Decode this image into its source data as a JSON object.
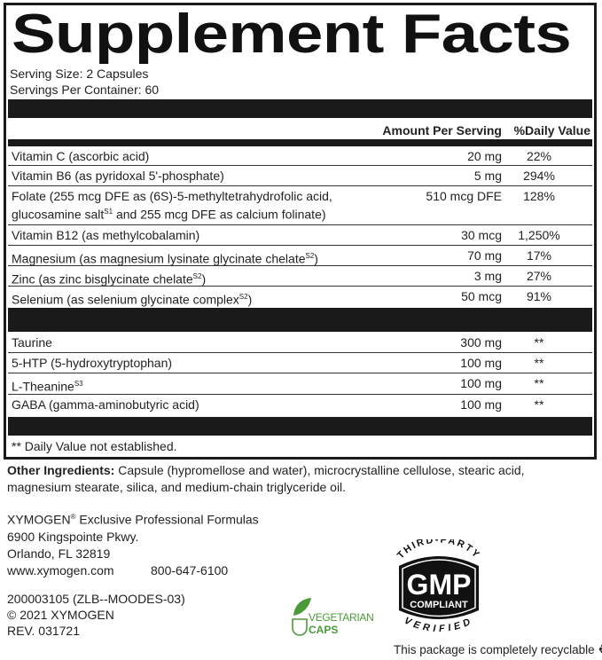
{
  "title": "Supplement Facts",
  "serving_size": "Serving Size: 2 Capsules",
  "servings_per_container": "Servings Per Container: 60",
  "headers": {
    "amount": "Amount Per Serving",
    "dv": "%Daily Value"
  },
  "vitamins": [
    {
      "name": "Vitamin C (ascorbic acid)",
      "amount": "20 mg",
      "dv": "22%"
    },
    {
      "name": "Vitamin B6 (as pyridoxal 5'-phosphate)",
      "amount": "5 mg",
      "dv": "294%"
    },
    {
      "name": "Folate (255 mcg DFE as (6S)-5-methyltetrahydrofolic acid,",
      "name2": "glucosamine salt",
      "sup": "S1",
      "name3": " and 255 mcg DFE as calcium folinate)",
      "amount": "510 mcg DFE",
      "dv": "128%"
    },
    {
      "name": "Vitamin B12 (as methylcobalamin)",
      "amount": "30 mcg",
      "dv": "1,250%"
    },
    {
      "name": "Magnesium (as magnesium lysinate glycinate chelate",
      "sup": "S2",
      "tail": ")",
      "amount": "70 mg",
      "dv": "17%"
    },
    {
      "name": "Zinc (as zinc bisglycinate chelate",
      "sup": "S2",
      "tail": ")",
      "amount": "3 mg",
      "dv": "27%"
    },
    {
      "name": "Selenium (as selenium glycinate complex",
      "sup": "S2",
      "tail": ")",
      "amount": "50 mcg",
      "dv": "91%"
    }
  ],
  "others": [
    {
      "name": "Taurine",
      "amount": "300 mg",
      "dv": "**"
    },
    {
      "name": "5-HTP (5-hydroxytryptophan)",
      "amount": "100 mg",
      "dv": "**"
    },
    {
      "name": "L-Theanine",
      "sup": "S3",
      "amount": "100 mg",
      "dv": "**"
    },
    {
      "name": "GABA (gamma-aminobutyric acid)",
      "amount": "100 mg",
      "dv": "**"
    }
  ],
  "footnote": "** Daily Value not established.",
  "other_ingredients": {
    "label": "Other Ingredients:",
    "line1": " Capsule (hypromellose and water), microcrystalline cellulose,  stearic acid,",
    "line2": "magnesium stearate, silica, and medium-chain triglyceride oil."
  },
  "company": {
    "name": "XYMOGEN",
    "reg": "®",
    "tagline": " Exclusive Professional Formulas",
    "street": "6900 Kingspointe Pkwy.",
    "city": "Orlando,  FL 32819",
    "web": "www.xymogen.com",
    "phone": "800-647-6100"
  },
  "codes": [
    "200003105 (ZLB--MOODES-03)",
    "© 2021 XYMOGEN",
    "REV. 031721"
  ],
  "veg_logo": {
    "line1": "VEGETARIAN",
    "line2": "CAPS",
    "color": "#4a9a3a"
  },
  "gmp_seal": {
    "top": "THIRD-PARTY",
    "main": "GMP",
    "sub": "COMPLIANT",
    "bottom": "VERIFIED"
  },
  "recyclable": "This package is completely recyclable",
  "icons": [
    "leaf-icon",
    "capsule-icon",
    "recycle-icon"
  ]
}
